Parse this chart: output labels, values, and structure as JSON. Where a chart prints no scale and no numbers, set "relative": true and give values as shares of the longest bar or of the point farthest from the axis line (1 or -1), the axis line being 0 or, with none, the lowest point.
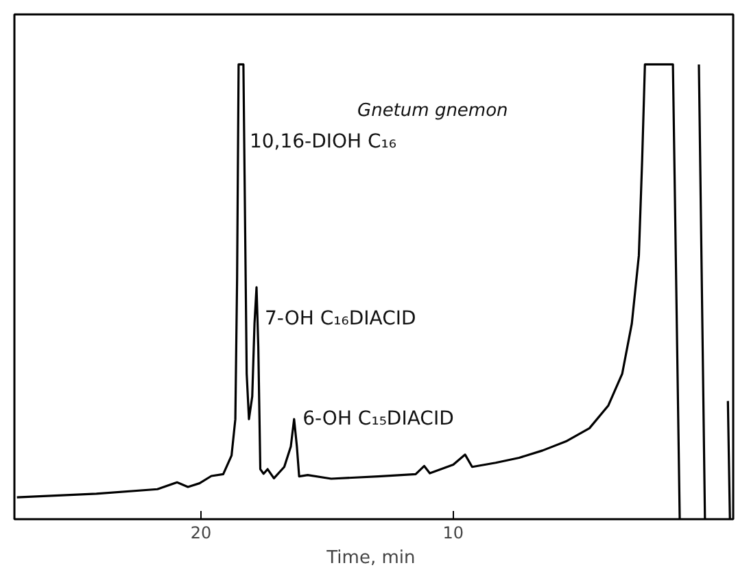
{
  "chart_data": {
    "type": "line",
    "relative": true,
    "xlabel": "Time,  min",
    "xlim": [
      27.4,
      -1.1
    ],
    "xticks": [
      20,
      10
    ],
    "grid": false,
    "series": [
      {
        "color": "#000000",
        "x": [
          27.3,
          24.15,
          21.73,
          20.95,
          20.52,
          20.06,
          19.59,
          19.12,
          18.79,
          18.64,
          18.57,
          18.51,
          18.32,
          18.25,
          18.19,
          18.1,
          17.97,
          17.88,
          17.8,
          17.73,
          17.65,
          17.52,
          17.36,
          17.11,
          16.7,
          16.44,
          16.31,
          16.2,
          16.11,
          15.77,
          14.84,
          12.98,
          11.49,
          11.15,
          10.93,
          10.0,
          9.53,
          9.25,
          8.32,
          7.39,
          6.46,
          5.53,
          4.6,
          3.85,
          3.3,
          2.92,
          2.64,
          2.51,
          2.4,
          1.29,
          1.02,
          0.6,
          0.26,
          0.02,
          -0.5,
          -0.89,
          -0.97
        ],
        "values": [
          0.048,
          0.056,
          0.066,
          0.081,
          0.071,
          0.079,
          0.095,
          0.099,
          0.14,
          0.22,
          0.53,
          1,
          1,
          0.63,
          0.32,
          0.22,
          0.27,
          0.43,
          0.51,
          0.38,
          0.11,
          0.1,
          0.11,
          0.09,
          0.115,
          0.16,
          0.22,
          0.16,
          0.094,
          0.097,
          0.089,
          0.094,
          0.099,
          0.117,
          0.101,
          0.12,
          0.142,
          0.115,
          0.124,
          0.135,
          0.151,
          0.171,
          0.2,
          0.25,
          0.32,
          0.43,
          0.58,
          0.79,
          1,
          1,
          0,
          null,
          1,
          0,
          null,
          0.26,
          0
        ]
      }
    ],
    "annotations": [
      {
        "text": "10,16-DIOH C₁₆",
        "x": 18.4,
        "y": 0.83
      },
      {
        "text": "7-OH C₁₆DIACID",
        "x": 17.8,
        "y": 0.44
      },
      {
        "text": "6-OH C₁₅DIACID",
        "x": 16.3,
        "y": 0.22
      },
      "Gnetum gnemon"
    ]
  }
}
